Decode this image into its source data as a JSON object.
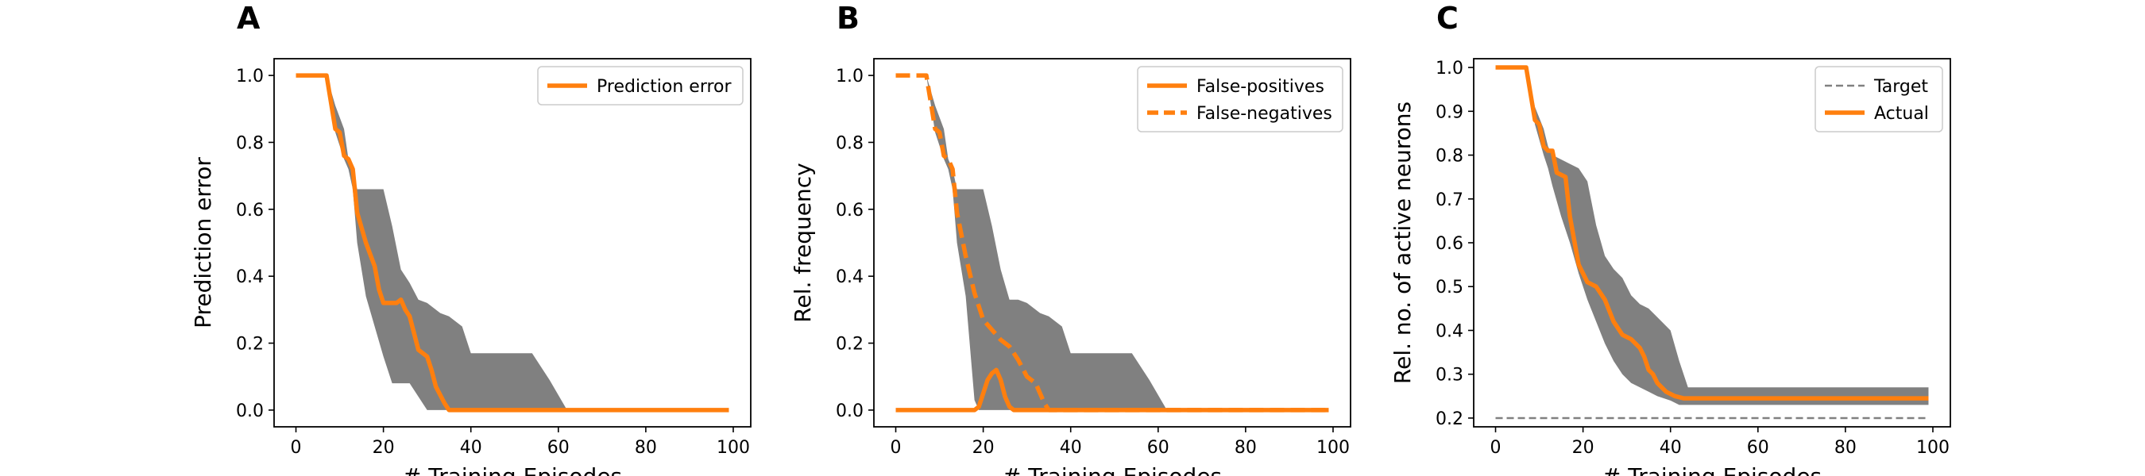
{
  "chart_data": [
    {
      "panel": "A",
      "type": "line",
      "xlabel": "# Training Episodes",
      "ylabel": "Prediction error",
      "xlim": [
        -5,
        104
      ],
      "ylim": [
        -0.05,
        1.05
      ],
      "xticks": [
        0,
        20,
        40,
        60,
        80,
        100
      ],
      "yticks": [
        0.0,
        0.2,
        0.4,
        0.6,
        0.8,
        1.0
      ],
      "ytick_labels": [
        "0.0",
        "0.2",
        "0.4",
        "0.6",
        "0.8",
        "1.0"
      ],
      "legend": "top-right",
      "grid": false,
      "band": {
        "color": "#808080",
        "x": [
          0,
          7,
          9,
          11,
          12,
          13,
          14,
          16,
          18,
          20,
          22,
          24,
          26,
          28,
          30,
          33,
          35,
          38,
          40,
          45,
          50,
          54,
          58,
          62,
          99
        ],
        "upper": [
          1.0,
          1.0,
          0.91,
          0.84,
          0.75,
          0.72,
          0.66,
          0.66,
          0.66,
          0.66,
          0.55,
          0.42,
          0.38,
          0.33,
          0.32,
          0.29,
          0.28,
          0.25,
          0.17,
          0.17,
          0.17,
          0.17,
          0.09,
          0.0,
          0.0
        ],
        "lower": [
          1.0,
          1.0,
          0.83,
          0.75,
          0.72,
          0.66,
          0.5,
          0.34,
          0.25,
          0.16,
          0.08,
          0.08,
          0.08,
          0.04,
          0.0,
          0.0,
          0.0,
          0.0,
          0.0,
          0.0,
          0.0,
          0.0,
          0.0,
          0.0,
          0.0
        ]
      },
      "series": [
        {
          "name": "Prediction error",
          "color": "#ff7f0e",
          "style": "solid",
          "x": [
            0,
            7,
            9,
            10,
            11,
            12,
            13,
            14,
            16,
            18,
            19,
            20,
            22,
            23,
            24,
            25,
            26,
            28,
            30,
            31,
            32,
            34,
            35,
            36,
            99
          ],
          "y": [
            1.0,
            1.0,
            0.84,
            0.83,
            0.76,
            0.75,
            0.72,
            0.59,
            0.5,
            0.43,
            0.36,
            0.32,
            0.32,
            0.32,
            0.33,
            0.3,
            0.28,
            0.18,
            0.16,
            0.12,
            0.07,
            0.02,
            0.0,
            0.0,
            0.0
          ]
        }
      ]
    },
    {
      "panel": "B",
      "type": "line",
      "xlabel": "# Training Episodes",
      "ylabel": "Rel. frequency",
      "xlim": [
        -5,
        104
      ],
      "ylim": [
        -0.05,
        1.05
      ],
      "xticks": [
        0,
        20,
        40,
        60,
        80,
        100
      ],
      "yticks": [
        0.0,
        0.2,
        0.4,
        0.6,
        0.8,
        1.0
      ],
      "ytick_labels": [
        "0.0",
        "0.2",
        "0.4",
        "0.6",
        "0.8",
        "1.0"
      ],
      "legend": "top-right",
      "grid": false,
      "band": {
        "color": "#808080",
        "x": [
          0,
          7,
          9,
          11,
          12,
          13,
          14,
          16,
          18,
          19,
          20,
          22,
          24,
          26,
          28,
          30,
          33,
          35,
          38,
          40,
          45,
          50,
          54,
          58,
          62,
          99
        ],
        "upper": [
          1.0,
          1.0,
          0.91,
          0.84,
          0.75,
          0.72,
          0.66,
          0.66,
          0.66,
          0.66,
          0.66,
          0.55,
          0.42,
          0.33,
          0.33,
          0.32,
          0.29,
          0.28,
          0.25,
          0.17,
          0.17,
          0.17,
          0.17,
          0.09,
          0.0,
          0.0
        ],
        "lower": [
          1.0,
          1.0,
          0.83,
          0.75,
          0.72,
          0.66,
          0.5,
          0.34,
          0.03,
          0.0,
          0.0,
          0.0,
          0.0,
          0.0,
          0.0,
          0.0,
          0.0,
          0.0,
          0.0,
          0.0,
          0.0,
          0.0,
          0.0,
          0.0,
          0.0,
          0.0
        ]
      },
      "series": [
        {
          "name": "False-positives",
          "color": "#ff7f0e",
          "style": "solid",
          "x": [
            0,
            18,
            19,
            20,
            21,
            22,
            23,
            24,
            25,
            26,
            27,
            99
          ],
          "y": [
            0.0,
            0.0,
            0.01,
            0.05,
            0.09,
            0.11,
            0.12,
            0.09,
            0.04,
            0.01,
            0.0,
            0.0
          ]
        },
        {
          "name": "False-negatives",
          "color": "#ff7f0e",
          "style": "dashed",
          "x": [
            0,
            7,
            9,
            10,
            11,
            12,
            13,
            14,
            16,
            18,
            20,
            22,
            24,
            26,
            28,
            30,
            32,
            33,
            34,
            35,
            99
          ],
          "y": [
            1.0,
            1.0,
            0.84,
            0.83,
            0.76,
            0.75,
            0.72,
            0.59,
            0.46,
            0.35,
            0.27,
            0.24,
            0.21,
            0.19,
            0.15,
            0.1,
            0.08,
            0.05,
            0.02,
            0.0,
            0.0
          ]
        }
      ]
    },
    {
      "panel": "C",
      "type": "line",
      "xlabel": "# Training Episodes",
      "ylabel": "Rel. no. of active neurons",
      "xlim": [
        -5,
        104
      ],
      "ylim": [
        0.18,
        1.02
      ],
      "xticks": [
        0,
        20,
        40,
        60,
        80,
        100
      ],
      "yticks": [
        0.2,
        0.3,
        0.4,
        0.5,
        0.6,
        0.7,
        0.8,
        0.9,
        1.0
      ],
      "ytick_labels": [
        "0.2",
        "0.3",
        "0.4",
        "0.5",
        "0.6",
        "0.7",
        "0.8",
        "0.9",
        "1.0"
      ],
      "legend": "top-right",
      "grid": false,
      "band": {
        "color": "#808080",
        "x": [
          0,
          7,
          9,
          11,
          12,
          13,
          15,
          17,
          19,
          21,
          23,
          25,
          27,
          29,
          31,
          33,
          35,
          37,
          40,
          42,
          44,
          46,
          50,
          60,
          80,
          99
        ],
        "upper": [
          1.0,
          1.0,
          0.91,
          0.86,
          0.82,
          0.8,
          0.79,
          0.78,
          0.77,
          0.74,
          0.64,
          0.57,
          0.54,
          0.52,
          0.48,
          0.46,
          0.45,
          0.43,
          0.4,
          0.33,
          0.27,
          0.27,
          0.27,
          0.27,
          0.27,
          0.27
        ],
        "lower": [
          1.0,
          1.0,
          0.87,
          0.8,
          0.77,
          0.73,
          0.66,
          0.6,
          0.53,
          0.47,
          0.42,
          0.37,
          0.33,
          0.3,
          0.28,
          0.27,
          0.26,
          0.25,
          0.24,
          0.23,
          0.23,
          0.23,
          0.23,
          0.23,
          0.23,
          0.23
        ]
      },
      "series": [
        {
          "name": "Target",
          "color": "#808080",
          "style": "dashed",
          "x": [
            0,
            99
          ],
          "y": [
            0.2,
            0.2
          ]
        },
        {
          "name": "Actual",
          "color": "#ff7f0e",
          "style": "solid",
          "x": [
            0,
            7,
            9,
            10,
            11,
            12,
            13,
            14,
            16,
            17,
            19,
            21,
            23,
            25,
            27,
            29,
            31,
            33,
            34,
            35,
            36,
            37,
            39,
            41,
            43,
            45,
            99
          ],
          "y": [
            1.0,
            1.0,
            0.88,
            0.87,
            0.82,
            0.81,
            0.81,
            0.76,
            0.75,
            0.66,
            0.55,
            0.51,
            0.5,
            0.47,
            0.42,
            0.39,
            0.38,
            0.36,
            0.34,
            0.31,
            0.3,
            0.28,
            0.26,
            0.25,
            0.245,
            0.245,
            0.245
          ]
        }
      ]
    }
  ]
}
